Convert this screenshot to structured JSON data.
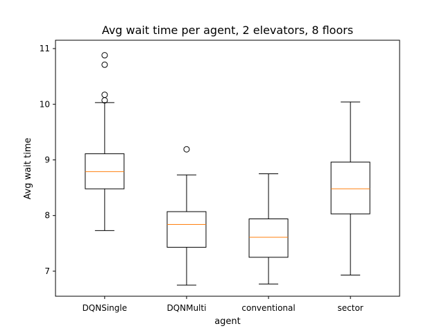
{
  "chart_data": {
    "type": "box",
    "title": "Avg wait time per agent, 2 elevators, 8 floors",
    "xlabel": "agent",
    "ylabel": "Avg wait time",
    "ylim": [
      6.55,
      11.15
    ],
    "yticks": [
      7,
      8,
      9,
      10,
      11
    ],
    "grid": false,
    "categories": [
      "DQNSingle",
      "DQNMulti",
      "conventional",
      "sector"
    ],
    "boxes": [
      {
        "category": "DQNSingle",
        "whisker_low": 7.73,
        "q1": 8.48,
        "median": 8.79,
        "q3": 9.11,
        "whisker_high": 10.03,
        "outliers": [
          10.07,
          10.17,
          10.71,
          10.88
        ]
      },
      {
        "category": "DQNMulti",
        "whisker_low": 6.75,
        "q1": 7.43,
        "median": 7.84,
        "q3": 8.07,
        "whisker_high": 8.73,
        "outliers": [
          9.19
        ]
      },
      {
        "category": "conventional",
        "whisker_low": 6.77,
        "q1": 7.25,
        "median": 7.61,
        "q3": 7.94,
        "whisker_high": 8.75,
        "outliers": []
      },
      {
        "category": "sector",
        "whisker_low": 6.93,
        "q1": 8.03,
        "median": 8.48,
        "q3": 8.96,
        "whisker_high": 10.04,
        "outliers": []
      }
    ],
    "colors": {
      "box": "#000000",
      "median": "#ff7f0e",
      "background": "#ffffff"
    }
  }
}
